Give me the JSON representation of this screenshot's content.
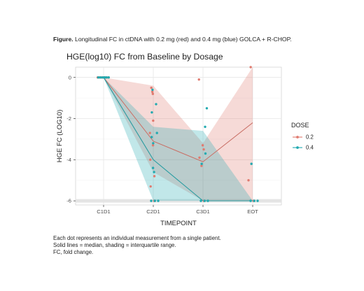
{
  "caption": {
    "label": "Figure.",
    "text": " Longitudinal FC in ctDNA with 0.2 mg (red) and 0.4 mg (blue) GOLCA + R-CHOP."
  },
  "footnotes": [
    "Each dot represents an individual measurement from a single patient.",
    "Solid lines = median, shading = interquartile range.",
    "FC, fold change."
  ],
  "colors": {
    "dose_0_2": "#e07b70",
    "dose_0_4": "#22aab0",
    "panel_bg": "#ffffff",
    "grid": "#e6e6e6"
  },
  "chart_data": {
    "type": "scatter",
    "title": "HGE(log10) FC from Baseline by Dosage",
    "xlabel": "TIMEPOINT",
    "ylabel": "HGE FC (LOG10)",
    "categories": [
      "C1D1",
      "C2D1",
      "C3D1",
      "EOT"
    ],
    "ylim": [
      -6.2,
      0.5
    ],
    "yticks": [
      0,
      -2,
      -4,
      -6
    ],
    "grid": true,
    "legend": {
      "title": "DOSE",
      "placement": "right"
    },
    "series": [
      {
        "name": "0.2",
        "color": "#e07b70",
        "median": [
          0,
          -3.1,
          -4.1,
          -2.2
        ],
        "iqr_low": [
          0,
          -4.6,
          -6.0,
          -6.0
        ],
        "iqr_high": [
          0,
          -0.4,
          -3.2,
          1.0
        ],
        "points": [
          [
            "C1D1",
            0
          ],
          [
            "C1D1",
            0
          ],
          [
            "C1D1",
            0
          ],
          [
            "C1D1",
            0
          ],
          [
            "C1D1",
            0
          ],
          [
            "C1D1",
            0
          ],
          [
            "C2D1",
            -0.5
          ],
          [
            "C2D1",
            -0.7
          ],
          [
            "C2D1",
            -0.8
          ],
          [
            "C2D1",
            -2.1
          ],
          [
            "C2D1",
            -2.7
          ],
          [
            "C2D1",
            -3.3
          ],
          [
            "C2D1",
            -4.0
          ],
          [
            "C2D1",
            -4.8
          ],
          [
            "C2D1",
            -5.3
          ],
          [
            "C2D1",
            -6.0
          ],
          [
            "C3D1",
            -0.1
          ],
          [
            "C3D1",
            -3.3
          ],
          [
            "C3D1",
            -3.5
          ],
          [
            "C3D1",
            -3.9
          ],
          [
            "C3D1",
            -4.3
          ],
          [
            "C3D1",
            -6.0
          ],
          [
            "EOT",
            0.5
          ],
          [
            "EOT",
            -5.0
          ],
          [
            "EOT",
            -6.0
          ]
        ]
      },
      {
        "name": "0.4",
        "color": "#22aab0",
        "median": [
          0,
          -4.0,
          -6.0,
          -6.0
        ],
        "iqr_low": [
          0,
          -6.0,
          -6.0,
          -6.0
        ],
        "iqr_high": [
          0,
          -2.4,
          -2.6,
          -6.0
        ],
        "points": [
          [
            "C1D1",
            0
          ],
          [
            "C1D1",
            0
          ],
          [
            "C1D1",
            0
          ],
          [
            "C1D1",
            0
          ],
          [
            "C1D1",
            0
          ],
          [
            "C1D1",
            0
          ],
          [
            "C1D1",
            0
          ],
          [
            "C2D1",
            -0.6
          ],
          [
            "C2D1",
            -1.3
          ],
          [
            "C2D1",
            -1.7
          ],
          [
            "C2D1",
            -2.7
          ],
          [
            "C2D1",
            -2.9
          ],
          [
            "C2D1",
            -3.2
          ],
          [
            "C2D1",
            -4.4
          ],
          [
            "C2D1",
            -4.6
          ],
          [
            "C2D1",
            -6.0
          ],
          [
            "C2D1",
            -6.0
          ],
          [
            "C2D1",
            -6.0
          ],
          [
            "C3D1",
            -1.5
          ],
          [
            "C3D1",
            -2.4
          ],
          [
            "C3D1",
            -3.7
          ],
          [
            "C3D1",
            -4.2
          ],
          [
            "C3D1",
            -6.0
          ],
          [
            "C3D1",
            -6.0
          ],
          [
            "C3D1",
            -6.0
          ],
          [
            "EOT",
            -4.2
          ],
          [
            "EOT",
            -6.0
          ],
          [
            "EOT",
            -6.0
          ],
          [
            "EOT",
            -6.0
          ]
        ]
      }
    ]
  }
}
